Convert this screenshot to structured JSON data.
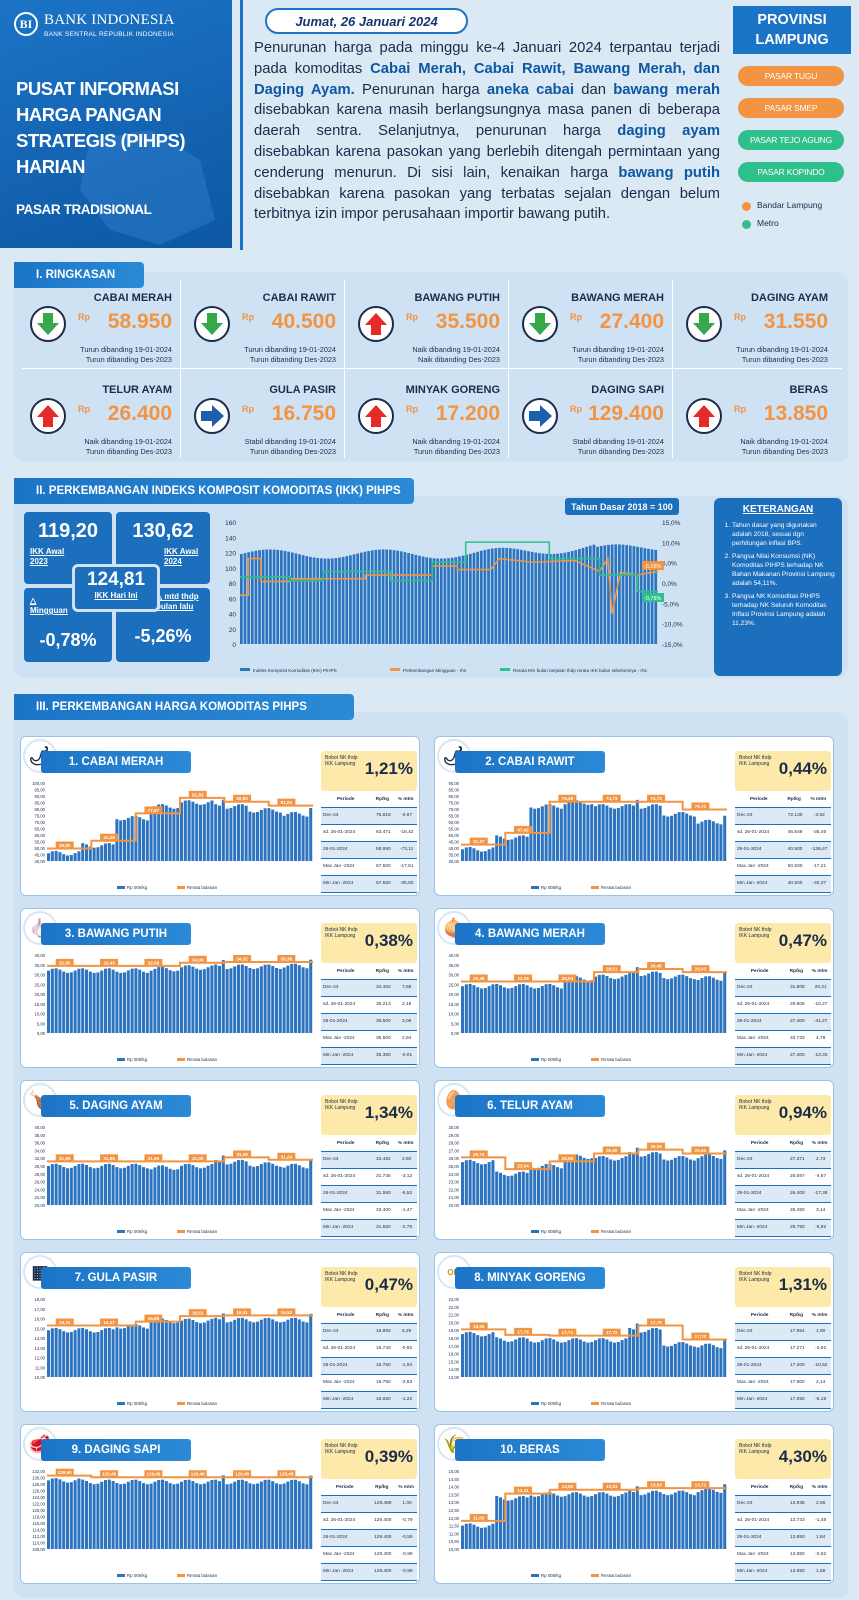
{
  "header": {
    "logo_letters": "BI",
    "bank_name": "BANK INDONESIA",
    "bank_sub": "BANK SENTRAL REPUBLIK INDONESIA",
    "title": "PUSAT INFORMASI HARGA PANGAN STRATEGIS (PIHPS) HARIAN",
    "market": "PASAR TRADISIONAL",
    "date": "Jumat, 26 Januari 2024",
    "province": "PROVINSI LAMPUNG"
  },
  "markets": [
    {
      "label": "PASAR TUGU",
      "color": "#f29442"
    },
    {
      "label": "PASAR SMEP",
      "color": "#f29442"
    },
    {
      "label": "PASAR TEJO AGUNG",
      "color": "#2fbf8a"
    },
    {
      "label": "PASAR KOPINDO",
      "color": "#2fbf8a"
    }
  ],
  "city_legend": [
    {
      "label": "Bandar Lampung",
      "color": "#f29442"
    },
    {
      "label": "Metro",
      "color": "#2fbf8a"
    }
  ],
  "colors": {
    "accent": "#1c74c6",
    "orange": "#f29442",
    "green": "#2fbf8a",
    "down": "#35a84a",
    "up": "#e52a2a",
    "flat": "#1c5fae"
  },
  "sections": {
    "ringkasan": "I. RINGKASAN",
    "ikk": "II. PERKEMBANGAN INDEKS KOMPOSIT KOMODITAS (IKK) PIHPS",
    "komoditas": "III. PERKEMBANGAN HARGA KOMODITAS PIHPS"
  },
  "summary": [
    {
      "name": "CABAI MERAH",
      "price": "58.950",
      "trend": "down",
      "line1": "Turun dibanding 19-01-2024",
      "line2": "Turun dibanding Des-2023"
    },
    {
      "name": "CABAI RAWIT",
      "price": "40.500",
      "trend": "down",
      "line1": "Turun dibanding 19-01-2024",
      "line2": "Turun dibanding Des-2023"
    },
    {
      "name": "BAWANG PUTIH",
      "price": "35.500",
      "trend": "up",
      "line1": "Naik dibanding 19-01-2024",
      "line2": "Naik dibanding Des-2023"
    },
    {
      "name": "BAWANG MERAH",
      "price": "27.400",
      "trend": "down",
      "line1": "Turun dibanding 19-01-2024",
      "line2": "Turun dibanding Des-2023"
    },
    {
      "name": "DAGING AYAM",
      "price": "31.550",
      "trend": "down",
      "line1": "Turun dibanding 19-01-2024",
      "line2": "Turun dibanding Des-2023"
    },
    {
      "name": "TELUR AYAM",
      "price": "26.400",
      "trend": "up",
      "line1": "Naik dibanding 19-01-2024",
      "line2": "Turun dibanding Des-2023"
    },
    {
      "name": "GULA PASIR",
      "price": "16.750",
      "trend": "flat",
      "line1": "Stabil dibanding 19-01-2024",
      "line2": "Turun dibanding Des-2023"
    },
    {
      "name": "MINYAK GORENG",
      "price": "17.200",
      "trend": "up",
      "line1": "Naik dibanding 19-01-2024",
      "line2": "Turun dibanding Des-2023"
    },
    {
      "name": "DAGING SAPI",
      "price": "129.400",
      "trend": "flat",
      "line1": "Stabil dibanding 19-01-2024",
      "line2": "Turun dibanding Des-2023"
    },
    {
      "name": "BERAS",
      "price": "13.850",
      "trend": "up",
      "line1": "Naik dibanding 19-01-2024",
      "line2": "Turun dibanding Des-2023"
    }
  ],
  "rp_label": "Rp",
  "ikk": {
    "base": "Tahun Dasar 2018 = 100",
    "awal_2023": "119,20",
    "awal_2023_label": "IKK Awal 2023",
    "awal_2024": "130,62",
    "awal_2024_label": "IKK Awal 2024",
    "hari_ini": "124,81",
    "hari_ini_label": "IKK Hari Ini",
    "mingguan": "-0,78%",
    "mingguan_label": "△ Mingguan",
    "mtd": "-5,26%",
    "mtd_label": "△ mtd thdp bulan lalu",
    "legend": [
      "Indeks Komposit Komoditas (IKK) PIHPS",
      "Perkembangan Mingguan - rhs",
      "Rerata IKK bulan berjalan thdp rerata IKK bulan sebelumnya - rhs"
    ],
    "y_left": [
      "160",
      "140",
      "120",
      "100",
      "80",
      "60",
      "40",
      "20",
      "0"
    ],
    "y_right": [
      "15,0%",
      "10,0%",
      "5,0%",
      "0,0%",
      "-5,0%",
      "-10,0%",
      "-15,0%"
    ],
    "point_labels": [
      "-5,26%",
      "-0,78%"
    ],
    "keterangan_title": "KETERANGAN",
    "keterangan": [
      "Tahun dasar yang digunakan adalah 2018, sesuai dgn perhitungan inflasi BPS.",
      "Pangsa Nilai Konsumsi (NK) Komoditas PIHPS terhadap NK Bahan Makanan Provinsi Lampung adalah 54,11%.",
      "Pangsa NK Komoditas PIHPS terhadap NK Seluruh Komoditas Inflasi Provinsi Lampung adalah 11,23%."
    ]
  },
  "narrative": {
    "p1": "Penurunan harga pada minggu ke-4 Januari 2024 terpantau terjadi pada komoditas ",
    "b1": "Cabai Merah, Cabai Rawit, Bawang Merah, dan Daging Ayam.",
    "p2": " Penurunan harga ",
    "b2": "aneka cabai",
    "p3": " dan ",
    "b3": "bawang merah",
    "p4": " disebabkan karena masih berlangsungnya masa panen di beberapa daerah sentra. Selanjutnya, penurunan harga ",
    "b4": "daging ayam",
    "p5": " disebabkan karena pasokan yang berlebih ditengah permintaan yang cenderung menurun. Di sisi lain, kenaikan harga ",
    "b5": "bawang putih",
    "p6": " disebabkan karena pasokan yang terbatas sejalan dengan belum terbitnya izin impor perusahaan importir bawang putih."
  },
  "bobot_label": "Bobot NK thdp IKK Lampung",
  "table_headers": [
    "Periode",
    "Rp/kg",
    "% mtm"
  ],
  "chart_legend": [
    "Rp 000/kg",
    "Rerata bulanan"
  ],
  "commodities": [
    {
      "title": "1. CABAI MERAH",
      "icon": "chili-icon",
      "glyph": "🌶",
      "bobot": "1,21%",
      "yticks": [
        "100,00",
        "95,00",
        "90,00",
        "85,00",
        "80,00",
        "75,00",
        "70,00",
        "65,00",
        "60,00",
        "55,00",
        "50,00",
        "45,00",
        "40,00"
      ],
      "avg": [
        "35,90",
        "41,28",
        "77,57",
        "81,83",
        "82,83",
        "81,83"
      ],
      "rows": [
        [
          "Dec-23",
          "76.818",
          "-0,97"
        ],
        [
          "sd. 26-01-2024",
          "63.471",
          "-18,42"
        ],
        [
          "26-01-2024",
          "58.950",
          "-73,11"
        ],
        [
          "Max Jan -2024",
          "67.500",
          "-17,61"
        ],
        [
          "Min Jan -2024",
          "57.550",
          "-25,60"
        ]
      ]
    },
    {
      "title": "2. CABAI RAWIT",
      "icon": "chili-padi-icon",
      "glyph": "🌶",
      "bobot": "0,44%",
      "yticks": [
        "90,00",
        "85,00",
        "80,00",
        "75,00",
        "70,00",
        "65,00",
        "60,00",
        "55,00",
        "50,00",
        "45,00",
        "40,00",
        "35,00",
        "30,00"
      ],
      "avg": [
        "31,37",
        "47,42",
        "75,49",
        "74,73",
        "74,73",
        "75,72"
      ],
      "rows": [
        [
          "Dec-23",
          "72.130",
          "-3,62"
        ],
        [
          "sd. 26-01-2024",
          "46.549",
          "-35,46"
        ],
        [
          "26-01-2024",
          "40.500",
          "-138,47"
        ],
        [
          "Max Jan -2024",
          "50.500",
          "-17,21"
        ],
        [
          "Min Jan -2024",
          "40.500",
          "-40,37"
        ]
      ]
    },
    {
      "title": "3. BAWANG PUTIH",
      "icon": "garlic-icon",
      "glyph": "🧄",
      "bobot": "0,38%",
      "yticks": [
        "40,00",
        "35,00",
        "30,00",
        "25,00",
        "20,00",
        "15,00",
        "10,00",
        "5,00",
        "0,00"
      ],
      "avg": [
        "32,85",
        "32,43",
        "32,58",
        "34,09",
        "34,32",
        "35,36"
      ],
      "rows": [
        [
          "Dec-23",
          "34.463",
          "7,68"
        ],
        [
          "sd. 26-01-2024",
          "35.213",
          "2,18"
        ],
        [
          "26-01-2024",
          "35.500",
          "3,06"
        ],
        [
          "Max Jan -2024",
          "35.500",
          "2,94"
        ],
        [
          "Min Jan -2024",
          "35.350",
          "-0,01"
        ]
      ]
    },
    {
      "title": "4. BAWANG MERAH",
      "icon": "onion-icon",
      "glyph": "🧅",
      "bobot": "0,47%",
      "yticks": [
        "40,00",
        "35,00",
        "30,00",
        "25,00",
        "20,00",
        "15,00",
        "10,00",
        "5,00",
        "0,00"
      ],
      "avg": [
        "25,45",
        "23,28",
        "25,04",
        "28,61",
        "29,45",
        "28,43"
      ],
      "rows": [
        [
          "Dec-23",
          "31.608",
          "20,21"
        ],
        [
          "sd. 26-01-2024",
          "28.808",
          "-10,27"
        ],
        [
          "26-01-2024",
          "27.400",
          "-41,27"
        ],
        [
          "Max Jan -2024",
          "33.733",
          "4,78"
        ],
        [
          "Min Jan -2024",
          "27.400",
          "-13,33"
        ]
      ]
    },
    {
      "title": "5. DAGING AYAM",
      "icon": "chicken-icon",
      "glyph": "🍗",
      "bobot": "1,34%",
      "yticks": [
        "40,00",
        "38,00",
        "36,00",
        "34,00",
        "32,00",
        "30,00",
        "28,00",
        "26,00",
        "24,00",
        "22,00",
        "20,00"
      ],
      "avg": [
        "31,89",
        "31,55",
        "31,56",
        "31,00",
        "31,08",
        "31,24"
      ],
      "rows": [
        [
          "Dec-23",
          "33.482",
          "2,60"
        ],
        [
          "sd. 26-01-2024",
          "31.745",
          "-3,12"
        ],
        [
          "26-01-2024",
          "31.550",
          "-5,52"
        ],
        [
          "Max Jan -2024",
          "33.400",
          "-1,47"
        ],
        [
          "Min Jan -2024",
          "31.550",
          "-2,75"
        ]
      ]
    },
    {
      "title": "6. TELUR AYAM",
      "icon": "egg-icon",
      "glyph": "🥚",
      "bobot": "0,94%",
      "yticks": [
        "30,00",
        "29,00",
        "28,00",
        "27,00",
        "26,00",
        "25,00",
        "24,00",
        "23,00",
        "22,00",
        "21,00",
        "20,00"
      ],
      "avg": [
        "25,74",
        "23,54",
        "25,05",
        "26,66",
        "26,05",
        "26,55"
      ],
      "rows": [
        [
          "Dec-23",
          "27.371",
          "2,73"
        ],
        [
          "sd. 26-01-2024",
          "26.087",
          "-4,67"
        ],
        [
          "26-01-2024",
          "26.400",
          "-17,38"
        ],
        [
          "Max Jan -2024",
          "26.450",
          "3,14"
        ],
        [
          "Min Jan -2024",
          "25.750",
          "-5,92"
        ]
      ]
    },
    {
      "title": "7. GULA PASIR",
      "icon": "sugar-sack-icon",
      "glyph": "▦",
      "bobot": "0,47%",
      "yticks": [
        "18,00",
        "17,00",
        "16,00",
        "15,00",
        "14,00",
        "13,00",
        "12,00",
        "11,00",
        "10,00"
      ],
      "avg": [
        "15,31",
        "15,17",
        "15,85",
        "16,51",
        "16,51",
        "16,52"
      ],
      "rows": [
        [
          "Dec-23",
          "16.893",
          "6,29"
        ],
        [
          "sd. 26-01-2024",
          "16.743",
          "-0,92"
        ],
        [
          "26-01-2024",
          "16.750",
          "-1,94"
        ],
        [
          "Max Jan -2024",
          "16.750",
          "-2,63"
        ],
        [
          "Min Jan -2024",
          "16.650",
          "-1,22"
        ]
      ]
    },
    {
      "title": "8. MINYAK GORENG",
      "icon": "oil-bottle-icon",
      "glyph": "OIL",
      "bobot": "1,31%",
      "yticks": [
        "23,00",
        "22,00",
        "21,00",
        "20,00",
        "19,00",
        "18,00",
        "17,00",
        "16,00",
        "15,00",
        "14,00",
        "13,00"
      ],
      "avg": [
        "18,56",
        "17,76",
        "17,71",
        "17,72",
        "17,70",
        "17,70"
      ],
      "rows": [
        [
          "Dec-23",
          "17.954",
          "1,90"
        ],
        [
          "sd. 26-01-2024",
          "17.271",
          "-3,92"
        ],
        [
          "26-01-2024",
          "17.200",
          "-10,52"
        ],
        [
          "Max Jan -2024",
          "17.900",
          "2,14"
        ],
        [
          "Min Jan -2024",
          "17.050",
          "-5,19"
        ]
      ]
    },
    {
      "title": "9. DAGING SAPI",
      "icon": "beef-icon",
      "glyph": "🥩",
      "bobot": "0,39%",
      "yticks": [
        "132,00",
        "130,00",
        "128,00",
        "126,00",
        "124,00",
        "122,00",
        "120,00",
        "118,00",
        "116,00",
        "114,00",
        "112,00",
        "110,00",
        "108,00"
      ],
      "avg": [
        "129,50",
        "129,48",
        "129,48",
        "129,48",
        "129,48",
        "129,48"
      ],
      "rows": [
        [
          "Dec-23",
          "129.489",
          "1,00"
        ],
        [
          "sd. 26-01-2024",
          "129.400",
          "-0,79"
        ],
        [
          "26-01-2024",
          "129.400",
          "-0,59"
        ],
        [
          "Max Jan -2024",
          "129.400",
          "-0,99"
        ],
        [
          "Min Jan -2024",
          "129.400",
          "-0,99"
        ]
      ]
    },
    {
      "title": "10. BERAS",
      "icon": "rice-sack-icon",
      "glyph": "🌾",
      "bobot": "4,30%",
      "yticks": [
        "15,00",
        "14,50",
        "14,00",
        "13,50",
        "13,00",
        "12,50",
        "12,00",
        "11,50",
        "11,00",
        "10,50",
        "10,00"
      ],
      "avg": [
        "11,50",
        "13,41",
        "13,60",
        "13,61",
        "13,63",
        "13,72"
      ],
      "rows": [
        [
          "Dec-23",
          "13.938",
          "2,56"
        ],
        [
          "sd. 26-01-2024",
          "13.733",
          "-1,48"
        ],
        [
          "26-01-2024",
          "13.850",
          "1,84"
        ],
        [
          "Max Jan -2024",
          "13.850",
          "-0,62"
        ],
        [
          "Min Jan -2024",
          "13.650",
          "1,68"
        ]
      ]
    }
  ]
}
